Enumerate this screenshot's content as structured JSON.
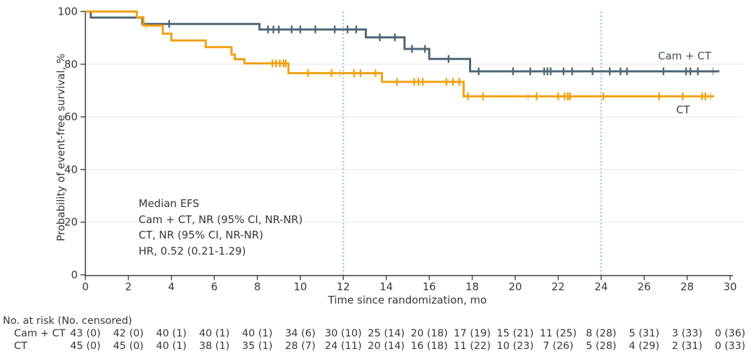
{
  "figure": {
    "kind": "Kaplan-Meier event-free survival plot"
  },
  "axes": {
    "x": {
      "title": "Time since randomization, mo",
      "min": 0,
      "max": 30,
      "tick_step": 2,
      "tick_values": [
        0,
        2,
        4,
        6,
        8,
        10,
        12,
        14,
        16,
        18,
        20,
        22,
        24,
        26,
        28,
        30
      ],
      "tick_labels": [
        "0",
        "2",
        "4",
        "6",
        "8",
        "10",
        "12",
        "14",
        "16",
        "18",
        "20",
        "22",
        "24",
        "26",
        "28",
        "30"
      ]
    },
    "y": {
      "title": "Probability of event-free survival, %",
      "min": 0,
      "max": 100,
      "tick_step": 20,
      "tick_values": [
        0,
        20,
        40,
        60,
        80,
        100
      ],
      "tick_labels": [
        "0",
        "20",
        "40",
        "60",
        "80",
        "100"
      ],
      "grid_values": [
        20,
        40,
        60,
        80
      ]
    }
  },
  "chart_data": {
    "type": "line",
    "subtype": "kaplan-meier-step",
    "x_unit": "months",
    "xlim": [
      0,
      30
    ],
    "ylim": [
      0,
      100
    ],
    "grid": "horizontal-light",
    "reference_lines_x": [
      12,
      24
    ],
    "reference_line_color": "#5fc3e7",
    "series": [
      {
        "name": "Cam + CT",
        "color": "#4d6574",
        "steps": [
          [
            0,
            100
          ],
          [
            0.25,
            97.7
          ],
          [
            2.65,
            95.3
          ],
          [
            8.1,
            93.2
          ],
          [
            13.05,
            90.2
          ],
          [
            14.85,
            85.8
          ],
          [
            16.0,
            82.0
          ],
          [
            17.9,
            77.3
          ]
        ],
        "end": 29.5,
        "censors": [
          3.9,
          8.5,
          8.75,
          9.0,
          9.6,
          10.0,
          10.7,
          11.6,
          12.2,
          12.6,
          13.7,
          14.4,
          15.2,
          15.8,
          16.9,
          18.3,
          19.9,
          20.7,
          21.35,
          21.5,
          21.65,
          22.25,
          22.65,
          23.6,
          24.4,
          24.9,
          25.2,
          26.9,
          27.95,
          28.15,
          28.5
        ],
        "censors_pale": [
          29.2
        ]
      },
      {
        "name": "CT",
        "color": "#f0a011",
        "steps": [
          [
            0,
            100
          ],
          [
            2.4,
            97.8
          ],
          [
            2.7,
            94.7
          ],
          [
            3.6,
            91.6
          ],
          [
            4.0,
            89.0
          ],
          [
            5.6,
            86.5
          ],
          [
            6.8,
            83.7
          ],
          [
            6.95,
            81.9
          ],
          [
            7.4,
            80.3
          ],
          [
            9.45,
            76.6
          ],
          [
            13.8,
            73.3
          ],
          [
            17.6,
            67.8
          ]
        ],
        "end": 29.25,
        "censors": [
          8.7,
          8.87,
          9.05,
          9.22,
          9.32,
          10.35,
          11.45,
          12.5,
          12.8,
          13.5,
          14.5,
          15.3,
          15.5,
          15.7,
          16.8,
          17.1,
          17.4,
          17.8,
          18.5,
          21.0,
          22.0,
          22.3,
          22.45,
          22.55,
          24.1,
          26.7,
          27.8,
          28.7,
          28.85
        ],
        "censors_pale": [
          2.8,
          11.85,
          20.6,
          29.1
        ]
      }
    ],
    "annotation": {
      "lines": [
        "Median EFS",
        "Cam + CT, NR (95% CI, NR-NR)",
        "CT, NR (95% CI, NR-NR)",
        "HR, 0.52 (0.21-1.29)"
      ]
    }
  },
  "risk_table": {
    "header": "No. at risk (No. censored)",
    "time_points": [
      0,
      2,
      4,
      6,
      8,
      10,
      12,
      14,
      16,
      18,
      20,
      22,
      24,
      26,
      28,
      30
    ],
    "rows": [
      {
        "label": "Cam + CT",
        "values": [
          "43 (0)",
          "42 (0)",
          "40 (1)",
          "40 (1)",
          "40 (1)",
          "34 (6)",
          "30 (10)",
          "25 (14)",
          "20 (18)",
          "17 (19)",
          "15 (21)",
          "11 (25)",
          "8 (28)",
          "5 (31)",
          "3 (33)",
          "0 (36)"
        ]
      },
      {
        "label": "CT",
        "values": [
          "45 (0)",
          "45 (0)",
          "40 (1)",
          "38 (1)",
          "35 (1)",
          "28 (7)",
          "24 (11)",
          "20 (14)",
          "16 (18)",
          "11 (22)",
          "10 (23)",
          "7 (26)",
          "5 (28)",
          "4 (29)",
          "2 (31)",
          "0 (33)"
        ]
      }
    ]
  }
}
